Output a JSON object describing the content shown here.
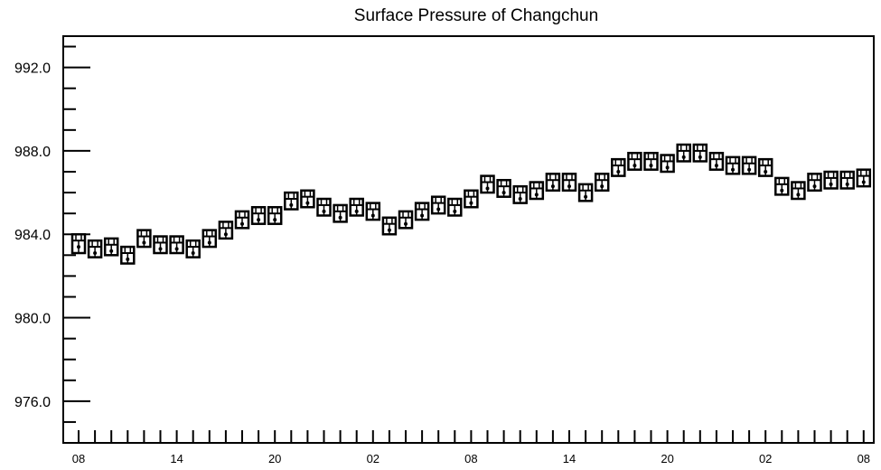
{
  "chart_data": {
    "type": "boxplot",
    "title": "Surface Pressure of Changchun",
    "xlabel": "",
    "ylabel": "",
    "ylim": [
      974.0,
      993.5
    ],
    "y_major_ticks": [
      976.0,
      980.0,
      984.0,
      988.0,
      992.0
    ],
    "y_tick_labels": [
      "976.0",
      "980.0",
      "984.0",
      "988.0",
      "992.0"
    ],
    "y_minor_step": 1.0,
    "x_count": 49,
    "x_tick_labels": [
      {
        "index": 0,
        "label": "08"
      },
      {
        "index": 6,
        "label": "14"
      },
      {
        "index": 12,
        "label": "20"
      },
      {
        "index": 18,
        "label": "02"
      },
      {
        "index": 24,
        "label": "08"
      },
      {
        "index": 30,
        "label": "14"
      },
      {
        "index": 36,
        "label": "20"
      },
      {
        "index": 42,
        "label": "02"
      },
      {
        "index": 48,
        "label": "08"
      }
    ],
    "series": [
      {
        "median": [
          983.7,
          983.4,
          983.5,
          983.1,
          983.9,
          983.6,
          983.6,
          983.4,
          983.9,
          984.3,
          984.8,
          985.0,
          985.0,
          985.7,
          985.8,
          985.4,
          985.1,
          985.4,
          985.2,
          984.5,
          984.8,
          985.2,
          985.5,
          985.4,
          985.8,
          986.5,
          986.3,
          986.0,
          986.2,
          986.6,
          986.6,
          986.1,
          986.6,
          987.3,
          987.6,
          987.6,
          987.5,
          988.0,
          988.0,
          987.6,
          987.4,
          987.4,
          987.3,
          986.4,
          986.2,
          986.6,
          986.7,
          986.7,
          986.8
        ],
        "q1": [
          983.1,
          982.9,
          983.0,
          982.6,
          983.4,
          983.1,
          983.1,
          982.9,
          983.4,
          983.8,
          984.3,
          984.5,
          984.5,
          985.2,
          985.3,
          984.9,
          984.6,
          984.9,
          984.7,
          984.0,
          984.3,
          984.7,
          985.0,
          984.9,
          985.3,
          986.0,
          985.8,
          985.5,
          985.7,
          986.1,
          986.1,
          985.6,
          986.1,
          986.8,
          987.1,
          987.1,
          987.0,
          987.5,
          987.5,
          987.1,
          986.9,
          986.9,
          986.8,
          985.9,
          985.7,
          986.1,
          986.2,
          986.2,
          986.3
        ],
        "q3": [
          984.0,
          983.7,
          983.8,
          983.4,
          984.2,
          983.9,
          983.9,
          983.7,
          984.2,
          984.6,
          985.1,
          985.3,
          985.3,
          986.0,
          986.1,
          985.7,
          985.4,
          985.7,
          985.5,
          984.8,
          985.1,
          985.5,
          985.8,
          985.7,
          986.1,
          986.8,
          986.6,
          986.3,
          986.5,
          986.9,
          986.9,
          986.4,
          986.9,
          987.6,
          987.9,
          987.9,
          987.8,
          988.3,
          988.3,
          987.9,
          987.7,
          987.7,
          987.6,
          986.7,
          986.5,
          986.9,
          987.0,
          987.0,
          987.1
        ],
        "mean": [
          983.4,
          983.1,
          983.2,
          982.8,
          983.6,
          983.3,
          983.3,
          983.1,
          983.6,
          984.0,
          984.5,
          984.7,
          984.7,
          985.4,
          985.5,
          985.1,
          984.8,
          985.1,
          984.9,
          984.2,
          984.5,
          984.9,
          985.2,
          985.1,
          985.5,
          986.2,
          986.0,
          985.7,
          985.9,
          986.3,
          986.3,
          985.8,
          986.3,
          987.0,
          987.3,
          987.3,
          987.2,
          987.7,
          987.7,
          987.3,
          987.1,
          987.1,
          987.0,
          986.1,
          985.9,
          986.3,
          986.4,
          986.4,
          986.5
        ]
      }
    ],
    "grid": false,
    "legend": "none",
    "colors": {
      "line": "#000000",
      "background": "#ffffff"
    }
  }
}
